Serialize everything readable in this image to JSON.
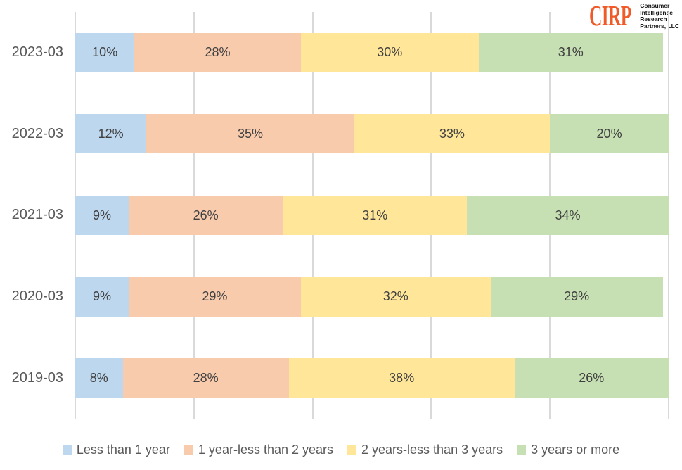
{
  "logo": {
    "abbr": "CIRP",
    "company_lines": [
      "Consumer",
      "Intelligence",
      "Research",
      "Partners, LLC"
    ]
  },
  "colors": {
    "series": [
      "#BDD7EE",
      "#F8CBAD",
      "#FFE699",
      "#C6E0B4"
    ],
    "gridline": "#D9D9D9",
    "data_label": "#404040",
    "axis_label": "#595959",
    "legend_text": "#595959",
    "logo_orange": "#F05A28"
  },
  "chart_data": {
    "type": "bar",
    "orientation": "horizontal",
    "stacked": true,
    "title": "",
    "xlabel": "",
    "ylabel": "",
    "categories": [
      "2023-03",
      "2022-03",
      "2021-03",
      "2020-03",
      "2019-03"
    ],
    "series": [
      {
        "name": "Less than 1 year",
        "values": [
          10,
          12,
          9,
          9,
          8
        ]
      },
      {
        "name": "1 year-less than 2 years",
        "values": [
          28,
          35,
          26,
          29,
          28
        ]
      },
      {
        "name": "2 years-less than 3 years",
        "values": [
          30,
          33,
          31,
          32,
          38
        ]
      },
      {
        "name": "3 years or more",
        "values": [
          31,
          20,
          34,
          29,
          26
        ]
      }
    ],
    "value_suffix": "%",
    "xlim": [
      0,
      100
    ],
    "gridline_positions_percent": [
      0,
      20,
      40,
      60,
      80,
      100
    ],
    "grid": "vertical-only",
    "legend_position": "bottom"
  }
}
